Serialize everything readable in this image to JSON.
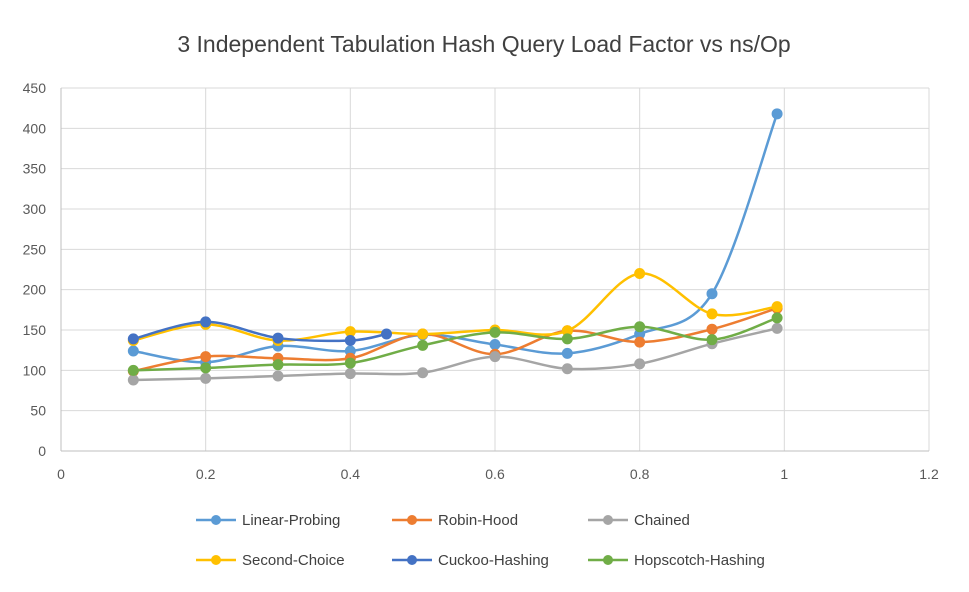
{
  "chart_data": {
    "type": "line",
    "title": "3 Independent  Tabulation Hash Query Load Factor vs ns/Op",
    "xlabel": "",
    "ylabel": "",
    "xlim": [
      0,
      1.2
    ],
    "ylim": [
      0,
      450
    ],
    "x_ticks": [
      0,
      0.2,
      0.4,
      0.6,
      0.8,
      1,
      1.2
    ],
    "y_ticks": [
      0,
      50,
      100,
      150,
      200,
      250,
      300,
      350,
      400,
      450
    ],
    "grid": true,
    "smooth": true,
    "legend_position": "bottom",
    "series": [
      {
        "name": "Linear-Probing",
        "color": "#5B9BD5",
        "points": [
          [
            0.1,
            124
          ],
          [
            0.2,
            110
          ],
          [
            0.3,
            130
          ],
          [
            0.4,
            124
          ],
          [
            0.5,
            144
          ],
          [
            0.6,
            132
          ],
          [
            0.7,
            121
          ],
          [
            0.8,
            145
          ],
          [
            0.9,
            195
          ],
          [
            0.99,
            418
          ]
        ]
      },
      {
        "name": "Robin-Hood",
        "color": "#ED7D31",
        "points": [
          [
            0.1,
            99
          ],
          [
            0.2,
            117
          ],
          [
            0.3,
            115
          ],
          [
            0.4,
            115
          ],
          [
            0.5,
            145
          ],
          [
            0.6,
            120
          ],
          [
            0.7,
            149
          ],
          [
            0.8,
            135
          ],
          [
            0.9,
            151
          ],
          [
            0.99,
            177
          ]
        ]
      },
      {
        "name": "Chained",
        "color": "#A5A5A5",
        "points": [
          [
            0.1,
            88
          ],
          [
            0.2,
            90
          ],
          [
            0.3,
            93
          ],
          [
            0.4,
            96
          ],
          [
            0.5,
            97
          ],
          [
            0.6,
            117
          ],
          [
            0.7,
            102
          ],
          [
            0.8,
            108
          ],
          [
            0.9,
            133
          ],
          [
            0.99,
            152
          ]
        ]
      },
      {
        "name": "Second-Choice",
        "color": "#FFC000",
        "points": [
          [
            0.1,
            137
          ],
          [
            0.2,
            157
          ],
          [
            0.3,
            137
          ],
          [
            0.4,
            148
          ],
          [
            0.5,
            145
          ],
          [
            0.6,
            150
          ],
          [
            0.7,
            149
          ],
          [
            0.8,
            220
          ],
          [
            0.9,
            170
          ],
          [
            0.99,
            179
          ]
        ]
      },
      {
        "name": "Cuckoo-Hashing",
        "color": "#4472C4",
        "points": [
          [
            0.1,
            139
          ],
          [
            0.2,
            160
          ],
          [
            0.3,
            140
          ],
          [
            0.4,
            137
          ],
          [
            0.45,
            145
          ]
        ]
      },
      {
        "name": "Hopscotch-Hashing",
        "color": "#70AD47",
        "points": [
          [
            0.1,
            100
          ],
          [
            0.2,
            103
          ],
          [
            0.3,
            107
          ],
          [
            0.4,
            109
          ],
          [
            0.5,
            131
          ],
          [
            0.6,
            147
          ],
          [
            0.7,
            139
          ],
          [
            0.8,
            154
          ],
          [
            0.9,
            138
          ],
          [
            0.99,
            165
          ]
        ]
      }
    ]
  }
}
